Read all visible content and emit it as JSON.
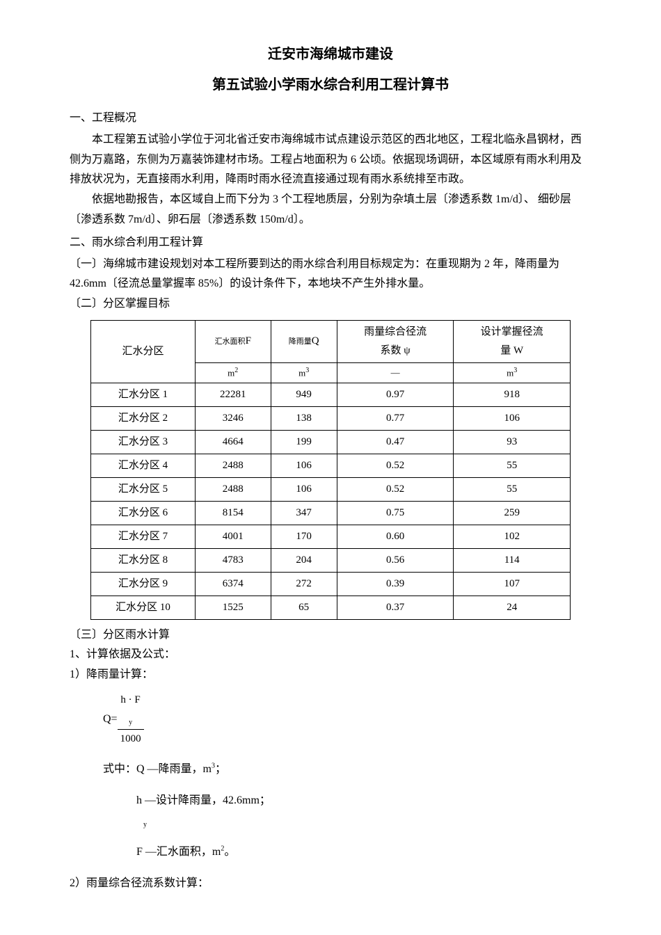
{
  "titles": {
    "main": "迁安市海绵城市建设",
    "sub": "第五试验小学雨水综合利用工程计算书"
  },
  "section1": {
    "heading": "一、工程概况",
    "p1": "本工程第五试验小学位于河北省迁安市海绵城市试点建设示范区的西北地区，工程北临永昌钢材，西侧为万嘉路，东侧为万嘉装饰建材市场。工程占地面积为 6 公顷。依据现场调研，本区域原有雨水利用及排放状况为，无直接雨水利用，降雨时雨水径流直接通过现有雨水系统排至市政。",
    "p2": "依据地勘报告，本区域自上而下分为 3 个工程地质层，分别为杂填土层〔渗透系数 1m/d〕、 细砂层〔渗透系数 7m/d〕、卵石层〔渗透系数 150m/d〕。"
  },
  "section2": {
    "heading": "二、雨水综合利用工程计算",
    "sub1_heading": "〔一〕海绵城市建设规划对本工程所要到达的雨水综合利用目标规定为：在重现期为 2 年，降雨量为 42.6mm〔径流总量掌握率 85%〕的设计条件下，本地块不产生外排水量。",
    "sub2_heading": "〔二〕分区掌握目标",
    "sub3_heading": "〔三〕分区雨水计算",
    "calc_basis": "1、计算依据及公式：",
    "calc1_heading": "1）降雨量计算：",
    "formula_lhs": "Q=",
    "formula_num": "h · F",
    "formula_sub": "y",
    "formula_den": "1000",
    "formula_desc_intro": "式中：Q —降雨量，m",
    "formula_desc_unit3": "3",
    "formula_desc_semi": "；",
    "formula_desc_h": "h —设计降雨量，42.6mm；",
    "formula_desc_h_sub": "y",
    "formula_desc_f": "F —汇水面积，m",
    "formula_desc_f_unit": "2",
    "formula_desc_f_end": "。",
    "calc2_heading": "2）雨量综合径流系数计算："
  },
  "table": {
    "headers": {
      "col1": "汇水分区",
      "col2_label": "汇水面积",
      "col2_sym": "F",
      "col3_label": "降雨量",
      "col3_sym": "Q",
      "col4_l1": "雨量综合径流",
      "col4_l2": "系数 ψ",
      "col5_l1": "设计掌握径流",
      "col5_l2": "量 W"
    },
    "units": {
      "u1": "",
      "u2_base": "m",
      "u2_sup": "2",
      "u3_base": "m",
      "u3_sup": "3",
      "u4": "—",
      "u5_base": "m",
      "u5_sup": "3"
    },
    "rows": [
      {
        "name": "汇水分区 1",
        "area": "22281",
        "rainfall": "949",
        "coef": "0.97",
        "runoff": "918"
      },
      {
        "name": "汇水分区 2",
        "area": "3246",
        "rainfall": "138",
        "coef": "0.77",
        "runoff": "106"
      },
      {
        "name": "汇水分区 3",
        "area": "4664",
        "rainfall": "199",
        "coef": "0.47",
        "runoff": "93"
      },
      {
        "name": "汇水分区 4",
        "area": "2488",
        "rainfall": "106",
        "coef": "0.52",
        "runoff": "55"
      },
      {
        "name": "汇水分区 5",
        "area": "2488",
        "rainfall": "106",
        "coef": "0.52",
        "runoff": "55"
      },
      {
        "name": "汇水分区 6",
        "area": "8154",
        "rainfall": "347",
        "coef": "0.75",
        "runoff": "259"
      },
      {
        "name": "汇水分区 7",
        "area": "4001",
        "rainfall": "170",
        "coef": "0.60",
        "runoff": "102"
      },
      {
        "name": "汇水分区 8",
        "area": "4783",
        "rainfall": "204",
        "coef": "0.56",
        "runoff": "114"
      },
      {
        "name": "汇水分区 9",
        "area": "6374",
        "rainfall": "272",
        "coef": "0.39",
        "runoff": "107"
      },
      {
        "name": "汇水分区 10",
        "area": "1525",
        "rainfall": "65",
        "coef": "0.37",
        "runoff": "24"
      }
    ]
  }
}
